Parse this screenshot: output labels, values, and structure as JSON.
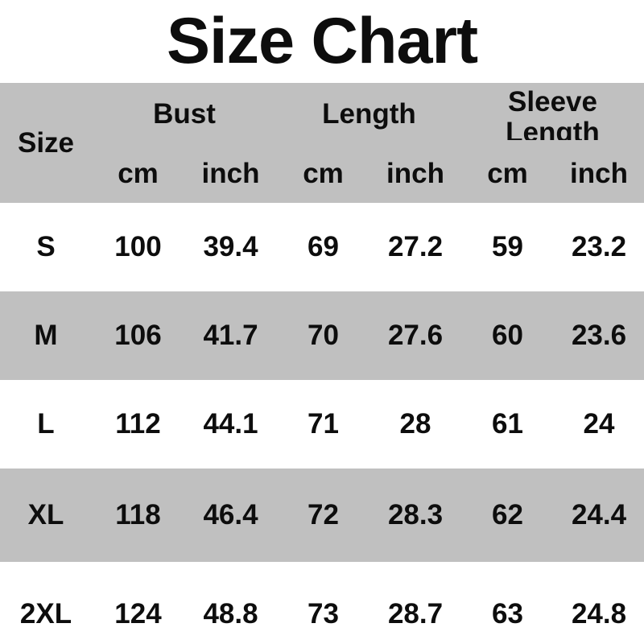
{
  "title": "Size Chart",
  "table": {
    "size_header": "Size",
    "groups": [
      {
        "label": "Bust"
      },
      {
        "label": "Length"
      },
      {
        "label": "Sleeve Length"
      }
    ],
    "units": [
      "cm",
      "inch",
      "cm",
      "inch",
      "cm",
      "inch"
    ],
    "rows": [
      {
        "size": "S",
        "values": [
          "100",
          "39.4",
          "69",
          "27.2",
          "59",
          "23.2"
        ]
      },
      {
        "size": "M",
        "values": [
          "106",
          "41.7",
          "70",
          "27.6",
          "60",
          "23.6"
        ]
      },
      {
        "size": "L",
        "values": [
          "112",
          "44.1",
          "71",
          "28",
          "61",
          "24"
        ]
      },
      {
        "size": "XL",
        "values": [
          "118",
          "46.4",
          "72",
          "28.3",
          "62",
          "24.4"
        ]
      },
      {
        "size": "2XL",
        "values": [
          "124",
          "48.8",
          "73",
          "28.7",
          "63",
          "24.8"
        ]
      }
    ]
  },
  "colors": {
    "stripe_gray": "#c0c0c0",
    "background_white": "#ffffff",
    "text_black": "#0d0d0d"
  },
  "chart_data": {
    "type": "table",
    "title": "Size Chart",
    "columns": [
      "Size",
      "Bust cm",
      "Bust inch",
      "Length cm",
      "Length inch",
      "Sleeve Length cm",
      "Sleeve Length inch"
    ],
    "rows": [
      [
        "S",
        100,
        39.4,
        69,
        27.2,
        59,
        23.2
      ],
      [
        "M",
        106,
        41.7,
        70,
        27.6,
        60,
        23.6
      ],
      [
        "L",
        112,
        44.1,
        71,
        28,
        61,
        24
      ],
      [
        "XL",
        118,
        46.4,
        72,
        28.3,
        62,
        24.4
      ],
      [
        "2XL",
        124,
        48.8,
        73,
        28.7,
        63,
        24.8
      ]
    ],
    "layout": "striped rows alternating gray/white, grouped headers with cm/inch sub-columns"
  }
}
